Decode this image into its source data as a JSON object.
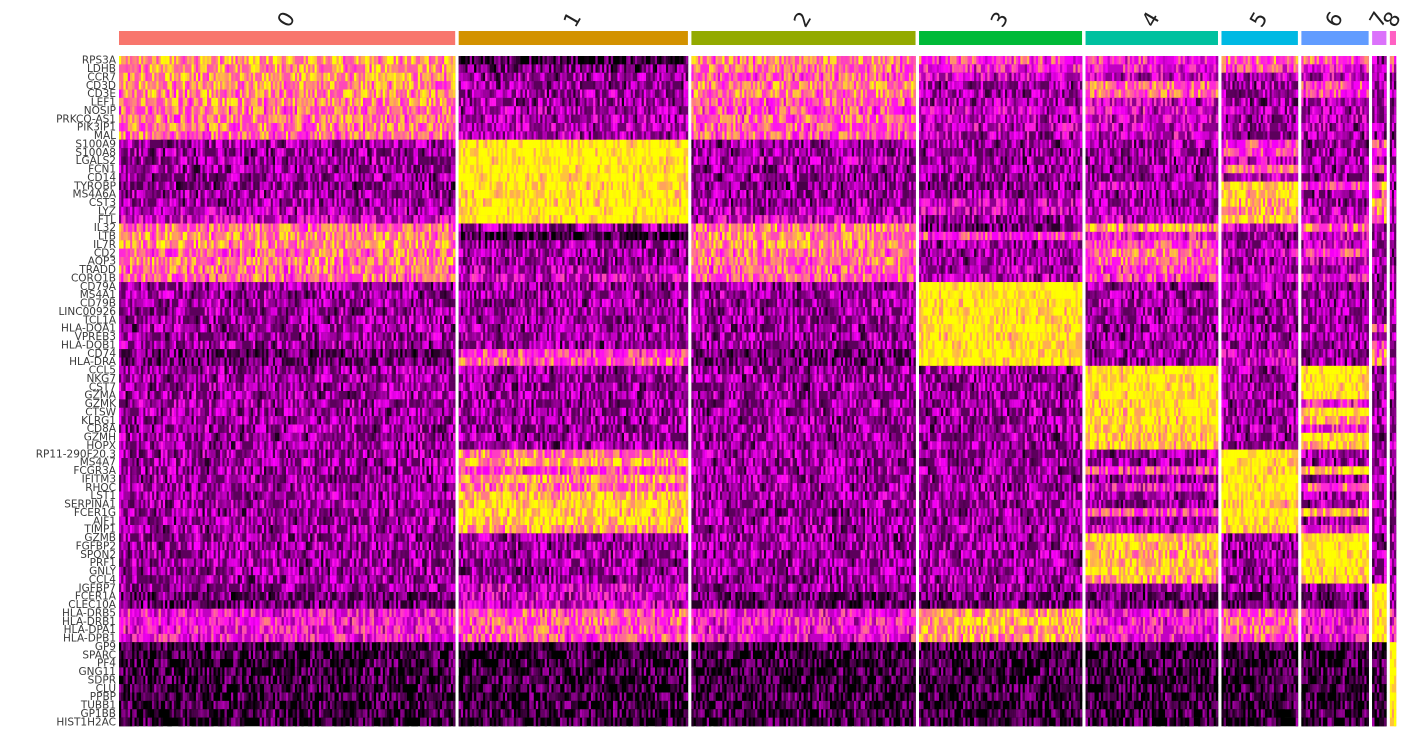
{
  "chart_data": {
    "type": "heatmap",
    "title": "",
    "xlabel": "",
    "ylabel": "",
    "color_scale": [
      "#000000",
      "#ff00ff",
      "#ffff00"
    ],
    "value_range": [
      -2.5,
      2.5
    ],
    "clusters": [
      {
        "label": "0",
        "color": "#f8766d",
        "cells": 330
      },
      {
        "label": "1",
        "color": "#d39200",
        "cells": 225
      },
      {
        "label": "2",
        "color": "#93aa00",
        "cells": 220
      },
      {
        "label": "3",
        "color": "#00ba38",
        "cells": 160
      },
      {
        "label": "4",
        "color": "#00c19f",
        "cells": 130
      },
      {
        "label": "5",
        "color": "#00b9e3",
        "cells": 75
      },
      {
        "label": "6",
        "color": "#619cff",
        "cells": 66
      },
      {
        "label": "7",
        "color": "#db72fb",
        "cells": 14
      },
      {
        "label": "8",
        "color": "#ff61c3",
        "cells": 6
      }
    ],
    "genes": [
      "RPS3A",
      "LDHB",
      "CCR7",
      "CD3D",
      "CD3E",
      "LEF1",
      "NOSIP",
      "PRKCQ-AS1",
      "PIK3IP1",
      "MAL",
      "S100A9",
      "S100A8",
      "LGALS2",
      "FCN1",
      "CD14",
      "TYROBP",
      "MS4A6A",
      "CST3",
      "LYZ",
      "FTL",
      "IL32",
      "LTB",
      "IL7R",
      "CD2",
      "AQP3",
      "TRADD",
      "CORO1B",
      "CD79A",
      "MS4A1",
      "CD79B",
      "LINC00926",
      "TCL1A",
      "HLA-DQA1",
      "VPREB3",
      "HLA-DQB1",
      "CD74",
      "HLA-DRA",
      "CCL5",
      "NKG7",
      "CST7",
      "GZMA",
      "GZMK",
      "CTSW",
      "KLRG1",
      "CD8A",
      "GZMH",
      "HOPX",
      "RP11-290F20.3",
      "MS4A7",
      "FCGR3A",
      "IFITM3",
      "RHOC",
      "LST1",
      "SERPINA1",
      "FCER1G",
      "AIF1",
      "TIMP1",
      "GZMB",
      "FGFBP2",
      "SPON2",
      "PRF1",
      "GNLY",
      "CCL4",
      "IGFBP7",
      "FCER1A",
      "CLEC10A",
      "HLA-DRB5",
      "HLA-DRB1",
      "HLA-DPA1",
      "HLA-DPB1",
      "GP9",
      "SPARC",
      "PF4",
      "GNG11",
      "SDPR",
      "CLU",
      "PPBP",
      "TUBB1",
      "GP1BB",
      "HIST1H2AC"
    ],
    "mean_scaled_expression": [
      [
        1.5,
        -2.0,
        1.2,
        0.5,
        0.3,
        1.0,
        0.8,
        -1.0,
        0.5
      ],
      [
        1.5,
        -1.5,
        1.0,
        0.0,
        0.0,
        0.5,
        0.0,
        -1.0,
        0.0
      ],
      [
        1.4,
        -1.0,
        0.8,
        -0.5,
        -0.5,
        -0.8,
        -0.5,
        -1.0,
        -1.0
      ],
      [
        1.3,
        -1.0,
        1.2,
        -1.0,
        1.0,
        -1.0,
        0.5,
        -1.0,
        -1.0
      ],
      [
        1.3,
        -1.0,
        1.1,
        -1.0,
        1.0,
        -1.0,
        0.5,
        -1.0,
        -1.0
      ],
      [
        1.2,
        -1.0,
        0.8,
        -0.8,
        -0.5,
        -1.0,
        -0.8,
        -1.0,
        -1.0
      ],
      [
        1.0,
        -0.8,
        0.7,
        -0.5,
        -0.3,
        -0.8,
        -0.8,
        -1.0,
        -1.0
      ],
      [
        1.1,
        -0.8,
        0.8,
        -0.7,
        -0.5,
        -1.0,
        -0.8,
        -1.0,
        -1.0
      ],
      [
        1.1,
        -0.8,
        0.8,
        -0.6,
        -0.5,
        -0.8,
        -0.8,
        -1.0,
        -1.0
      ],
      [
        1.0,
        -0.8,
        0.8,
        -0.8,
        -0.5,
        -1.0,
        -1.0,
        -1.0,
        -1.0
      ],
      [
        -1.0,
        2.5,
        -1.0,
        -1.0,
        -1.0,
        0.5,
        -1.0,
        0.5,
        -1.0
      ],
      [
        -1.0,
        2.5,
        -1.0,
        -1.0,
        -1.0,
        0.5,
        -1.0,
        0.5,
        -1.0
      ],
      [
        -1.0,
        2.5,
        -0.8,
        -1.0,
        -1.0,
        -0.5,
        -1.0,
        -1.0,
        -1.0
      ],
      [
        -1.0,
        2.5,
        -1.0,
        -1.0,
        -1.0,
        1.0,
        -1.0,
        0.5,
        -1.0
      ],
      [
        -1.0,
        2.5,
        -1.0,
        -1.0,
        -1.0,
        -0.5,
        -1.0,
        -1.0,
        -1.0
      ],
      [
        -1.2,
        2.2,
        -1.2,
        -1.2,
        -0.5,
        2.0,
        0.5,
        1.5,
        -1.0
      ],
      [
        -1.0,
        2.3,
        -1.0,
        -1.0,
        -1.0,
        2.0,
        -1.0,
        0.5,
        -1.0
      ],
      [
        -1.0,
        2.4,
        -1.0,
        -0.5,
        -1.0,
        1.8,
        -1.0,
        2.0,
        -1.0
      ],
      [
        -0.8,
        2.5,
        -0.8,
        -0.5,
        -0.8,
        1.5,
        -0.8,
        1.0,
        -1.0
      ],
      [
        -0.5,
        2.5,
        -0.5,
        -1.0,
        -0.5,
        2.0,
        -0.5,
        1.0,
        -1.0
      ],
      [
        1.0,
        -1.0,
        1.2,
        -1.5,
        1.5,
        -0.5,
        1.0,
        -1.0,
        -1.0
      ],
      [
        1.3,
        -2.0,
        1.3,
        0.5,
        0.0,
        -1.0,
        -0.5,
        -1.0,
        -1.0
      ],
      [
        1.3,
        -1.0,
        1.3,
        -1.0,
        0.5,
        -1.0,
        -0.5,
        -1.0,
        -1.0
      ],
      [
        1.0,
        -1.0,
        1.0,
        -1.0,
        1.0,
        -0.5,
        0.5,
        -1.0,
        -1.0
      ],
      [
        1.2,
        -1.0,
        1.0,
        -1.0,
        0.8,
        -1.0,
        -0.5,
        -1.0,
        -1.0
      ],
      [
        1.0,
        -0.8,
        0.8,
        -0.8,
        0.5,
        -0.8,
        -0.8,
        -1.0,
        -1.0
      ],
      [
        1.0,
        -0.5,
        0.8,
        -0.8,
        0.5,
        -0.5,
        0.0,
        -1.0,
        -1.0
      ],
      [
        -1.0,
        -1.0,
        -1.0,
        2.5,
        -1.0,
        -1.0,
        -1.0,
        -1.0,
        -1.0
      ],
      [
        -1.0,
        -1.0,
        -1.0,
        2.5,
        -1.0,
        -1.0,
        -1.0,
        -1.0,
        -1.0
      ],
      [
        -1.0,
        -1.0,
        -1.0,
        2.5,
        -1.0,
        -1.0,
        -1.0,
        -1.0,
        -1.0
      ],
      [
        -1.0,
        -1.0,
        -1.0,
        2.3,
        -1.0,
        -1.0,
        -1.0,
        -1.0,
        -1.0
      ],
      [
        -1.0,
        -1.0,
        -1.0,
        2.3,
        -1.0,
        -1.0,
        -1.0,
        -1.0,
        -1.0
      ],
      [
        -1.0,
        -1.0,
        -1.0,
        2.4,
        -1.0,
        -1.0,
        -1.0,
        0.5,
        -1.0
      ],
      [
        -1.0,
        -1.0,
        -1.0,
        2.2,
        -1.0,
        -1.0,
        -1.0,
        -1.0,
        -1.0
      ],
      [
        -1.0,
        -1.0,
        -1.0,
        2.3,
        -1.0,
        -1.0,
        -1.0,
        0.5,
        -1.0
      ],
      [
        -1.5,
        0.5,
        -1.5,
        2.5,
        -1.0,
        -0.5,
        -1.0,
        1.0,
        -1.0
      ],
      [
        -1.5,
        0.8,
        -1.5,
        2.5,
        -1.0,
        -0.5,
        -1.0,
        1.0,
        -1.0
      ],
      [
        -1.0,
        -1.0,
        -1.0,
        -1.0,
        2.5,
        -1.0,
        2.5,
        -1.0,
        -1.0
      ],
      [
        -1.0,
        -1.0,
        -1.0,
        -1.0,
        2.5,
        -1.0,
        2.5,
        -1.0,
        -1.0
      ],
      [
        -1.0,
        -1.0,
        -1.0,
        -1.0,
        2.4,
        -1.0,
        2.4,
        -1.0,
        -1.0
      ],
      [
        -1.0,
        -1.0,
        -1.0,
        -1.0,
        2.4,
        -1.0,
        2.2,
        -1.0,
        -1.0
      ],
      [
        -1.0,
        -1.0,
        -1.0,
        -1.0,
        2.3,
        -1.0,
        0.0,
        -1.0,
        -1.0
      ],
      [
        -1.0,
        -1.0,
        -1.0,
        -1.0,
        2.2,
        -1.0,
        2.2,
        -1.0,
        -1.0
      ],
      [
        -1.0,
        -1.0,
        -1.0,
        -1.0,
        2.2,
        -1.0,
        1.5,
        -1.0,
        -1.0
      ],
      [
        -1.0,
        -1.0,
        -1.0,
        -1.0,
        2.2,
        -1.0,
        0.0,
        -1.0,
        -1.0
      ],
      [
        -1.0,
        -1.0,
        -1.0,
        -1.0,
        2.0,
        -1.0,
        2.2,
        -1.0,
        -1.0
      ],
      [
        -1.0,
        -1.0,
        -1.0,
        -1.0,
        2.0,
        -1.0,
        2.0,
        -1.0,
        -1.0
      ],
      [
        -1.0,
        1.2,
        -1.0,
        -1.0,
        -1.0,
        2.5,
        -1.0,
        -1.0,
        -1.0
      ],
      [
        -1.0,
        1.5,
        -1.0,
        -1.0,
        -1.0,
        2.5,
        -1.0,
        -1.0,
        -1.0
      ],
      [
        -1.0,
        0.5,
        -1.0,
        -1.0,
        0.5,
        2.5,
        2.0,
        -1.0,
        -1.0
      ],
      [
        -1.0,
        1.5,
        -1.0,
        -1.0,
        -1.0,
        2.5,
        -1.0,
        -1.0,
        -1.0
      ],
      [
        -1.0,
        1.0,
        -1.0,
        -1.0,
        0.0,
        2.5,
        1.0,
        -1.0,
        -1.0
      ],
      [
        -1.0,
        1.8,
        -1.0,
        -1.0,
        -1.0,
        2.5,
        -1.0,
        -1.0,
        -1.0
      ],
      [
        -1.0,
        2.0,
        -1.0,
        -1.0,
        -1.0,
        2.0,
        -1.0,
        -1.0,
        -1.0
      ],
      [
        -1.0,
        2.0,
        -1.0,
        -1.0,
        0.5,
        2.5,
        1.5,
        -1.0,
        -1.0
      ],
      [
        -1.0,
        2.0,
        -1.0,
        -1.0,
        -1.0,
        2.5,
        -1.0,
        -1.0,
        -1.0
      ],
      [
        -1.0,
        1.5,
        -1.0,
        -1.0,
        -0.5,
        2.0,
        0.0,
        -1.0,
        -1.0
      ],
      [
        -1.0,
        -1.0,
        -1.0,
        -1.0,
        2.0,
        -1.0,
        2.5,
        -1.0,
        -1.0
      ],
      [
        -1.0,
        -1.0,
        -1.0,
        -1.0,
        1.8,
        -1.0,
        2.5,
        -1.0,
        -1.0
      ],
      [
        -1.0,
        -1.0,
        -1.0,
        -1.0,
        1.5,
        -1.0,
        2.5,
        -1.0,
        -1.0
      ],
      [
        -1.0,
        -1.0,
        -1.0,
        -1.0,
        1.8,
        -1.0,
        2.5,
        -1.0,
        -1.0
      ],
      [
        -1.0,
        -1.0,
        -1.0,
        -1.0,
        2.0,
        -1.0,
        2.5,
        -1.0,
        -1.0
      ],
      [
        -1.0,
        -1.0,
        -1.0,
        -1.0,
        1.5,
        -1.0,
        2.0,
        -1.0,
        -1.0
      ],
      [
        -1.0,
        -0.5,
        -1.0,
        -1.0,
        -1.0,
        -1.0,
        -1.0,
        2.0,
        -1.0
      ],
      [
        -1.5,
        -0.5,
        -1.5,
        -1.5,
        -1.5,
        -1.5,
        -1.5,
        2.5,
        -1.0
      ],
      [
        -1.5,
        -0.5,
        -1.5,
        -1.5,
        -1.5,
        -1.5,
        -1.5,
        2.5,
        -1.0
      ],
      [
        0.0,
        0.8,
        0.0,
        1.8,
        0.0,
        0.8,
        0.0,
        2.5,
        0.0
      ],
      [
        0.0,
        0.8,
        0.0,
        1.8,
        0.0,
        0.8,
        0.0,
        2.5,
        0.0
      ],
      [
        0.0,
        0.8,
        0.0,
        1.5,
        0.0,
        0.8,
        0.0,
        2.5,
        0.0
      ],
      [
        0.0,
        0.8,
        0.0,
        1.5,
        0.0,
        0.8,
        0.0,
        2.5,
        0.0
      ],
      [
        -2.0,
        -2.0,
        -2.0,
        -2.0,
        -2.0,
        -2.0,
        -2.0,
        -2.0,
        2.5
      ],
      [
        -2.0,
        -2.0,
        -2.0,
        -2.0,
        -2.0,
        -2.0,
        -2.0,
        -2.0,
        2.5
      ],
      [
        -2.0,
        -2.0,
        -2.0,
        -2.0,
        -2.0,
        -2.0,
        -2.0,
        -2.0,
        2.5
      ],
      [
        -2.0,
        -2.0,
        -2.0,
        -2.0,
        -2.0,
        -2.0,
        -2.0,
        -2.0,
        2.5
      ],
      [
        -2.0,
        -2.0,
        -2.0,
        -2.0,
        -2.0,
        -2.0,
        -2.0,
        -2.0,
        2.5
      ],
      [
        -2.0,
        -2.0,
        -2.0,
        -2.0,
        -2.0,
        -2.0,
        -2.0,
        -2.0,
        2.5
      ],
      [
        -2.0,
        -2.0,
        -2.0,
        -2.0,
        -2.0,
        -2.0,
        -2.0,
        -2.0,
        2.5
      ],
      [
        -2.0,
        -2.0,
        -2.0,
        -2.0,
        -2.0,
        -2.0,
        -2.0,
        -2.0,
        2.5
      ],
      [
        -2.0,
        -2.0,
        -2.0,
        -2.0,
        -2.0,
        -2.0,
        -2.0,
        -2.0,
        2.5
      ],
      [
        -2.0,
        -2.0,
        -2.0,
        -2.0,
        -2.0,
        -2.0,
        -2.0,
        -2.0,
        2.5
      ]
    ]
  }
}
